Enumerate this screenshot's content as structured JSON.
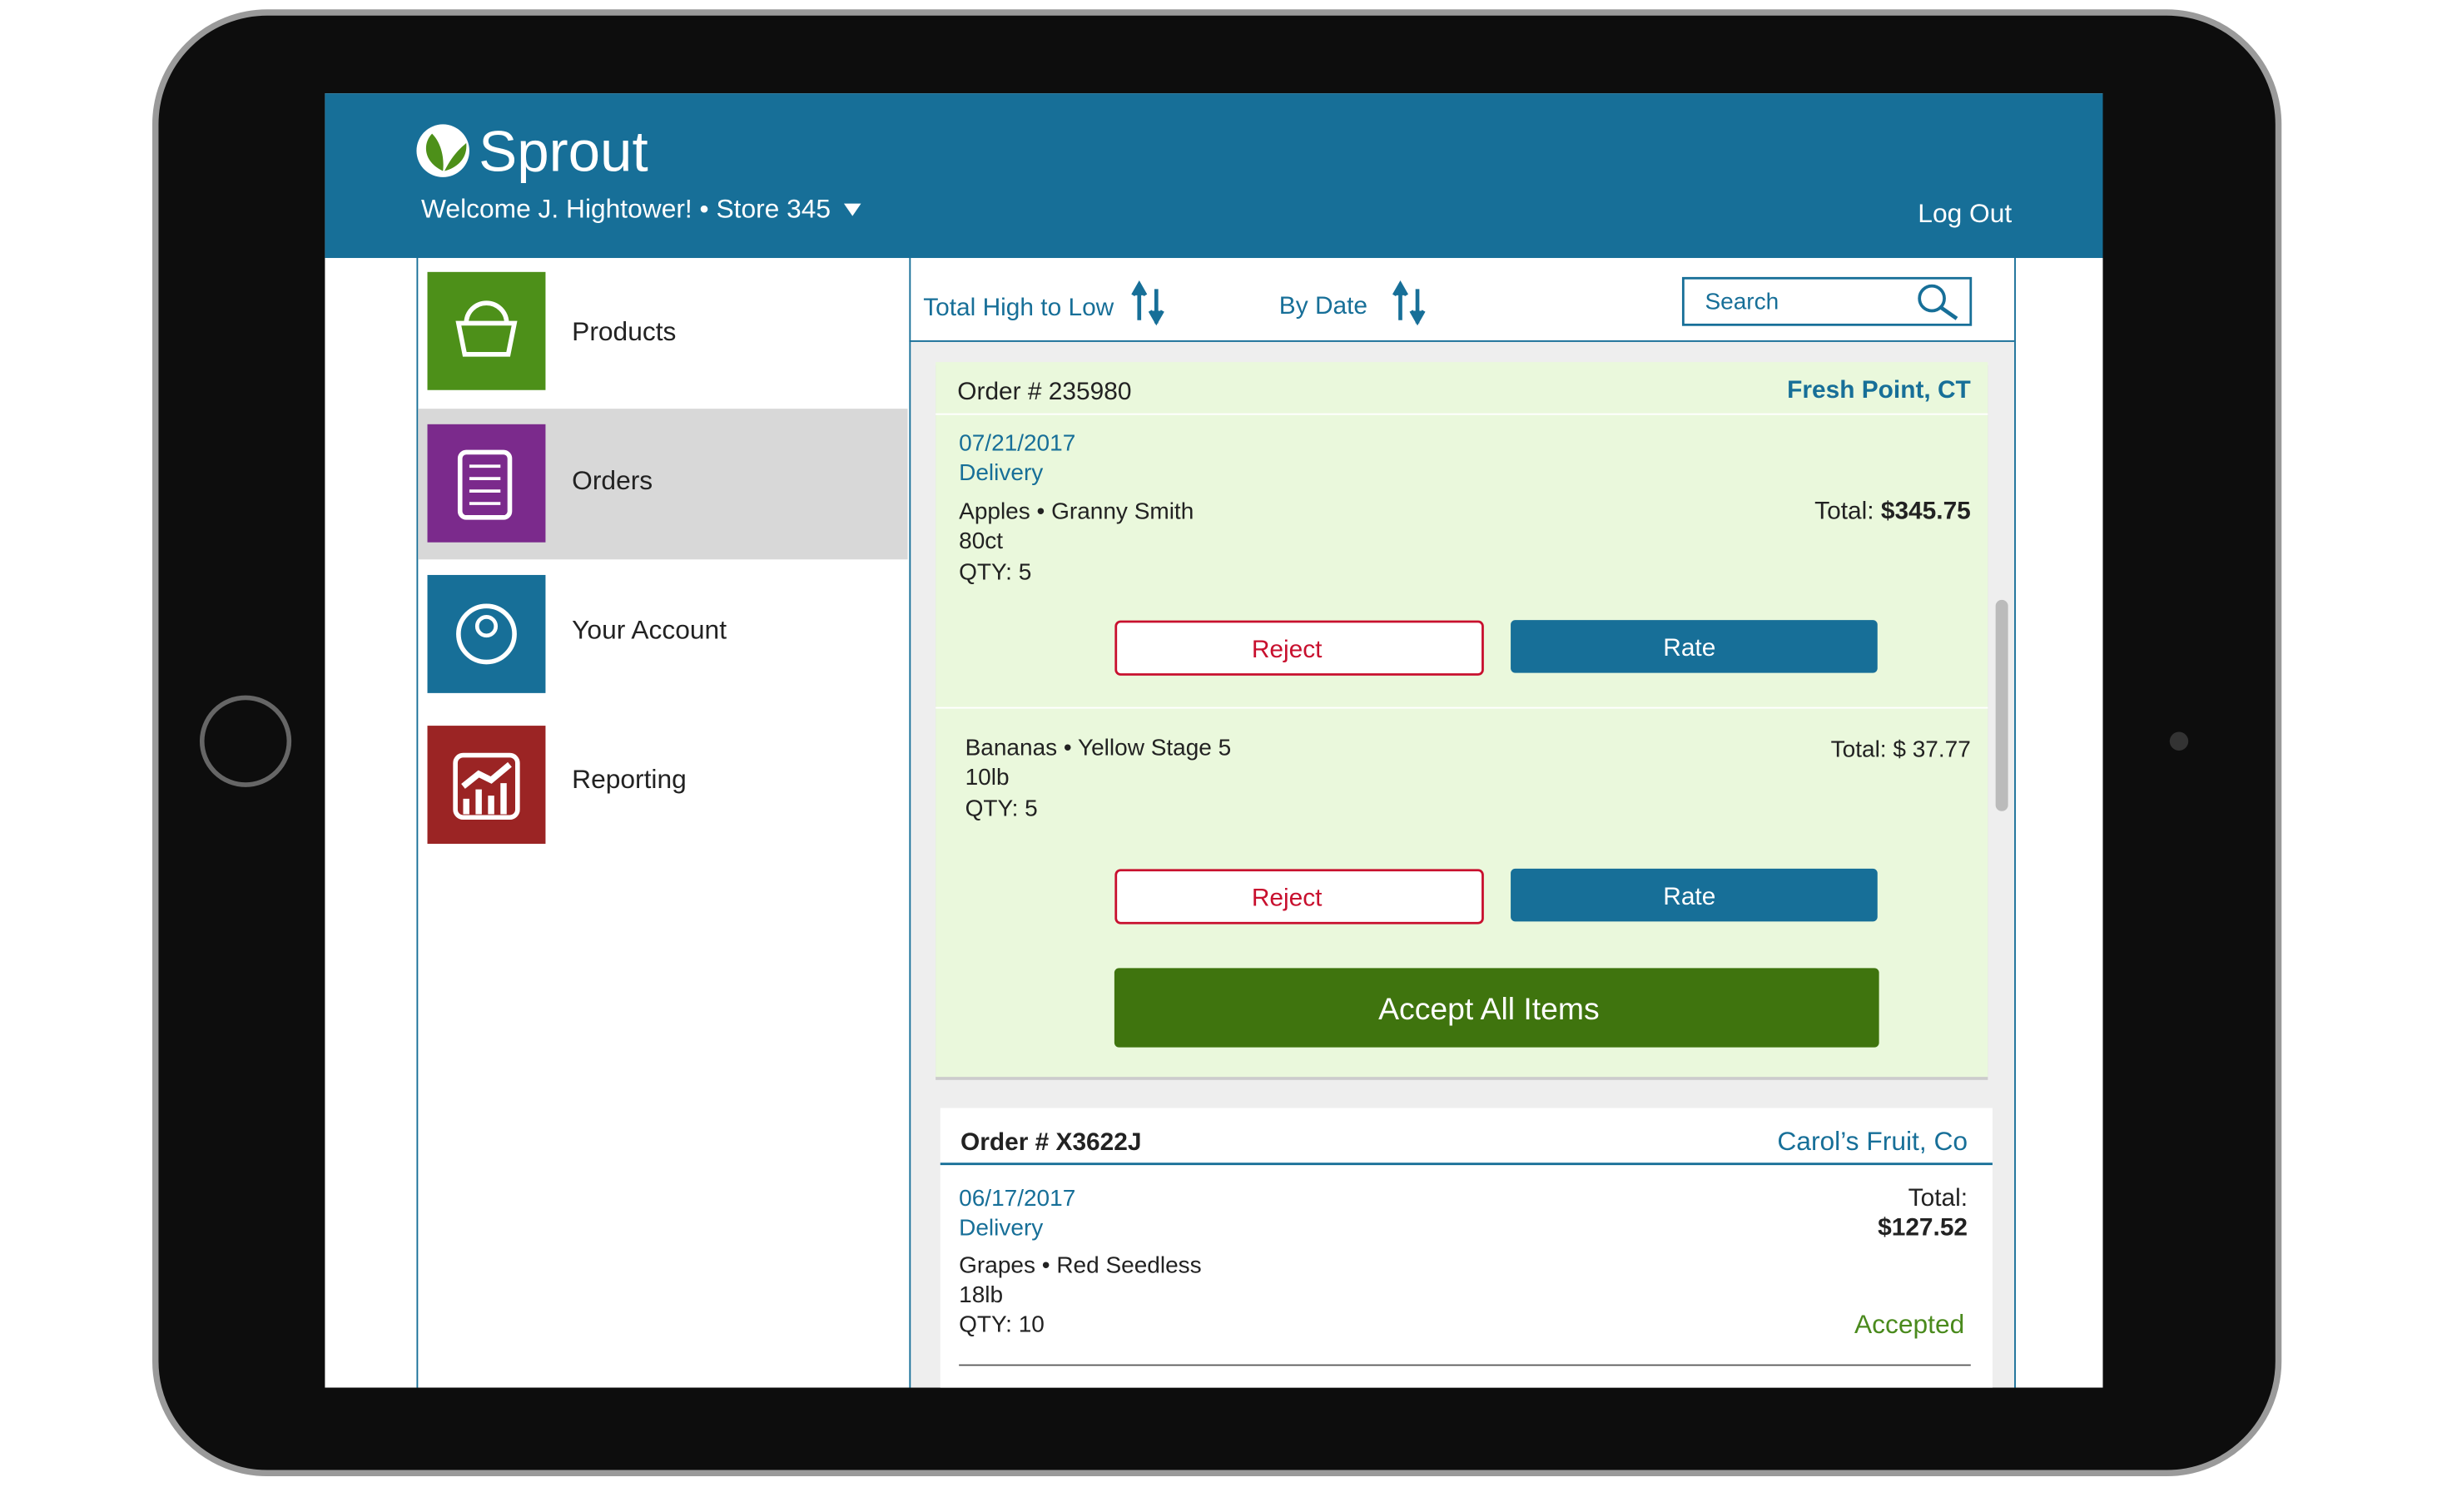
{
  "header": {
    "brand": "Sprout",
    "welcome": "Welcome J. Hightower! • Store 345",
    "logout": "Log Out"
  },
  "nav": [
    {
      "label": "Products"
    },
    {
      "label": "Orders"
    },
    {
      "label": "Your Account"
    },
    {
      "label": "Reporting"
    }
  ],
  "toolbar": {
    "sort_total": "Total High to Low",
    "sort_date": "By Date",
    "search": "Search"
  },
  "orders": [
    {
      "number": "Order # 235980",
      "vendor": "Fresh Point, CT",
      "date": "07/21/2017",
      "method": "Delivery",
      "items": [
        {
          "name": "Apples • Granny Smith",
          "size": "80ct",
          "qty": "QTY: 5",
          "total_label": "Total:",
          "total": "$345.75",
          "reject": "Reject",
          "rate": "Rate"
        },
        {
          "name": "Bananas • Yellow Stage 5",
          "size": "10lb",
          "qty": "QTY: 5",
          "total_label": "Total: $",
          "total": "37.77",
          "reject": "Reject",
          "rate": "Rate"
        }
      ],
      "accept_all": "Accept All Items"
    },
    {
      "number": "Order # X3622J",
      "vendor": "Carol’s Fruit, Co",
      "date": "06/17/2017",
      "method": "Delivery",
      "items": [
        {
          "name": "Grapes • Red Seedless",
          "size": "18lb",
          "qty": "QTY: 10",
          "total_label": "Total:",
          "total": "$127.52",
          "status": "Accepted"
        }
      ]
    }
  ]
}
